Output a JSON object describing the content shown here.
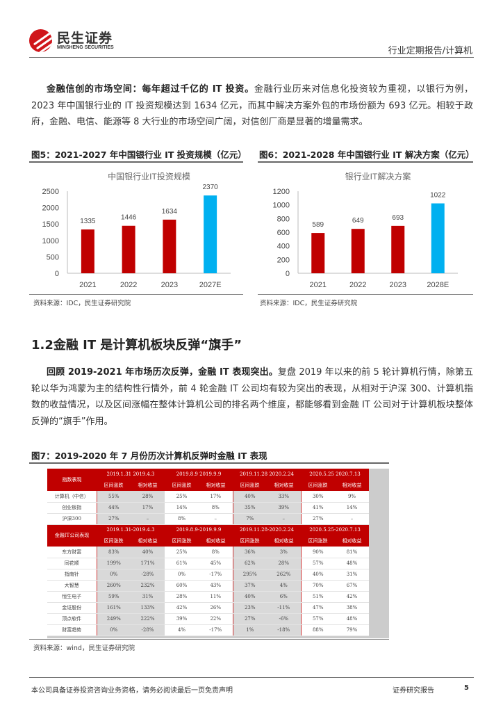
{
  "header": {
    "logo_cn": "民生证券",
    "logo_en": "MINSHENG SECURITIES",
    "report_type": "行业定期报告/计算机"
  },
  "para1": {
    "bold": "金融信创的市场空间：每年超过千亿的 IT 投资。",
    "text": "金融行业历来对信息化投资较为重视，以银行为例，2023 年中国银行业的 IT 投资规模达到 1634 亿元，而其中解决方案外包的市场份额为 693 亿元。相较于政府，金融、电信、能源等 8 大行业的市场空间广阔，对信创厂商是显著的增量需求。"
  },
  "fig5": {
    "caption": "图5：2021-2027 年中国银行业 IT 投资规模（亿元）",
    "source": "资料来源：IDC，民生证券研究院"
  },
  "fig6": {
    "caption": "图6：2021-2028 年中国银行业 IT 解决方案（亿元）",
    "source": "资料来源：IDC，民生证券研究院"
  },
  "chart_data": [
    {
      "type": "bar",
      "title": "中国银行业IT投资规模",
      "categories": [
        "2021",
        "2022",
        "2023",
        "2027E"
      ],
      "values": [
        1335,
        1446,
        1634,
        2370
      ],
      "ylim": [
        0,
        2500
      ],
      "yticks": [
        "0",
        "500",
        "1000",
        "1500",
        "2000",
        "2500"
      ],
      "colors": [
        "#c00000",
        "#c00000",
        "#c00000",
        "#00b0f0"
      ],
      "grid": false
    },
    {
      "type": "bar",
      "title": "银行业IT解决方案",
      "categories": [
        "2021",
        "2022",
        "2023",
        "2028E"
      ],
      "values": [
        589,
        649,
        693,
        1022
      ],
      "ylim": [
        0,
        1200
      ],
      "yticks": [
        "0",
        "200",
        "400",
        "600",
        "800",
        "1000",
        "1200"
      ],
      "colors": [
        "#c00000",
        "#c00000",
        "#c00000",
        "#00b0f0"
      ],
      "grid": false
    }
  ],
  "section": {
    "title": "1.2金融 IT 是计算机板块反弹“旗手”"
  },
  "para2": {
    "bold": "回顾 2019-2021 年市场历次反弹，金融 IT 表现突出。",
    "text": "复盘 2019 年以来的前 5 轮计算机行情，除第五轮以华为鸿蒙为主的结构性行情外，前 4 轮金融 IT 公司均有较为突出的表现，从相对于沪深 300、计算机指数的收益情况，以及区间涨幅在整体计算机公司的排名两个维度，都能够看到金融 IT 公司对于计算机板块整体反弹的“旗手”作用。"
  },
  "fig7": {
    "caption": "图7：2019-2020 年 7 月份历次计算机反弹时金融 IT 表现",
    "source": "资料来源：wind，民生证券研究院"
  },
  "table": {
    "periods1": [
      "2019.1.31 2019.4.3",
      "2019.8.9 2019.9.9",
      "2019.11.28 2020.2.24",
      "2020.5.25 2020.7.13"
    ],
    "periods2": [
      "2019.1.31-2019.4.3",
      "2019.8.9-2019.9.9",
      "2019.11.28-2020.2.24",
      "2020.5.25-2020.7.13"
    ],
    "sub": [
      "区间涨跌",
      "相对收益"
    ],
    "head1": "指数表现",
    "head2": "金融IT公司表现",
    "index_rows": [
      [
        "计算机（中信）",
        "55%",
        "28%",
        "25%",
        "17%",
        "40%",
        "33%",
        "30%",
        "9%"
      ],
      [
        "创业板指",
        "44%",
        "17%",
        "14%",
        "8%",
        "35%",
        "39%",
        "41%",
        "14%"
      ],
      [
        "沪深300",
        "27%",
        "–",
        "8%",
        "–",
        "7%",
        "–",
        "27%",
        "–"
      ]
    ],
    "company_rows": [
      [
        "东方财富",
        "83%",
        "40%",
        "25%",
        "8%",
        "36%",
        "3%",
        "90%",
        "81%"
      ],
      [
        "同花顺",
        "199%",
        "171%",
        "61%",
        "45%",
        "62%",
        "28%",
        "57%",
        "48%"
      ],
      [
        "指南针",
        "0%",
        "-28%",
        "0%",
        "-17%",
        "295%",
        "262%",
        "40%",
        "31%"
      ],
      [
        "大智慧",
        "260%",
        "232%",
        "60%",
        "43%",
        "37%",
        "4%",
        "70%",
        "67%"
      ],
      [
        "恒生电子",
        "59%",
        "31%",
        "28%",
        "11%",
        "40%",
        "6%",
        "51%",
        "42%"
      ],
      [
        "金证股份",
        "161%",
        "133%",
        "42%",
        "26%",
        "23%",
        "-11%",
        "47%",
        "38%"
      ],
      [
        "顶点软件",
        "249%",
        "222%",
        "39%",
        "22%",
        "27%",
        "-6%",
        "57%",
        "48%"
      ],
      [
        "财富趋势",
        "0%",
        "-28%",
        "4%",
        "-17%",
        "1%",
        "-18%",
        "88%",
        "79%"
      ]
    ]
  },
  "footer": {
    "disclaimer": "本公司具备证券投资咨询业务资格，请务必阅读最后一页免责声明",
    "label": "证券研究报告",
    "page": "5"
  }
}
